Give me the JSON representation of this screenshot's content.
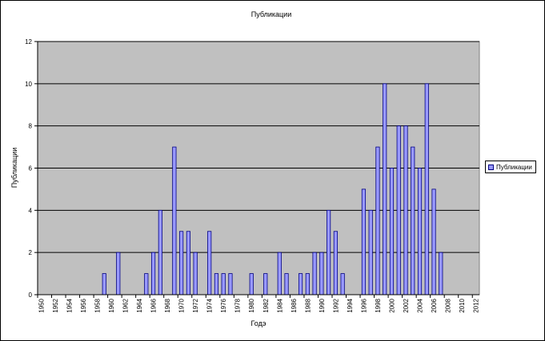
{
  "chart_data": {
    "type": "bar",
    "title": "Публикации",
    "xlabel": "Годэ",
    "ylabel": "Публикации",
    "ylim": [
      0,
      12
    ],
    "yticks": [
      0,
      2,
      4,
      6,
      8,
      10,
      12
    ],
    "xlim": [
      1950,
      2012
    ],
    "xtick_step": 2,
    "grid": true,
    "legend_position": "right",
    "bar_color": "#9999ff",
    "bar_edge_color": "#000080",
    "plot_background": "#c0c0c0",
    "series": [
      {
        "name": "Публикации",
        "points": [
          {
            "x": 1959,
            "y": 1
          },
          {
            "x": 1961,
            "y": 2
          },
          {
            "x": 1965,
            "y": 1
          },
          {
            "x": 1966,
            "y": 2
          },
          {
            "x": 1967,
            "y": 4
          },
          {
            "x": 1969,
            "y": 7
          },
          {
            "x": 1970,
            "y": 3
          },
          {
            "x": 1971,
            "y": 3
          },
          {
            "x": 1972,
            "y": 2
          },
          {
            "x": 1974,
            "y": 3
          },
          {
            "x": 1975,
            "y": 1
          },
          {
            "x": 1976,
            "y": 1
          },
          {
            "x": 1977,
            "y": 1
          },
          {
            "x": 1980,
            "y": 1
          },
          {
            "x": 1982,
            "y": 1
          },
          {
            "x": 1984,
            "y": 2
          },
          {
            "x": 1985,
            "y": 1
          },
          {
            "x": 1987,
            "y": 1
          },
          {
            "x": 1988,
            "y": 1
          },
          {
            "x": 1989,
            "y": 2
          },
          {
            "x": 1990,
            "y": 2
          },
          {
            "x": 1991,
            "y": 4
          },
          {
            "x": 1992,
            "y": 3
          },
          {
            "x": 1993,
            "y": 1
          },
          {
            "x": 1996,
            "y": 5
          },
          {
            "x": 1997,
            "y": 4
          },
          {
            "x": 1998,
            "y": 7
          },
          {
            "x": 1999,
            "y": 10
          },
          {
            "x": 2000,
            "y": 6
          },
          {
            "x": 2001,
            "y": 8
          },
          {
            "x": 2002,
            "y": 8
          },
          {
            "x": 2003,
            "y": 7
          },
          {
            "x": 2004,
            "y": 6
          },
          {
            "x": 2005,
            "y": 10
          },
          {
            "x": 2006,
            "y": 5
          },
          {
            "x": 2007,
            "y": 2
          }
        ]
      }
    ]
  }
}
